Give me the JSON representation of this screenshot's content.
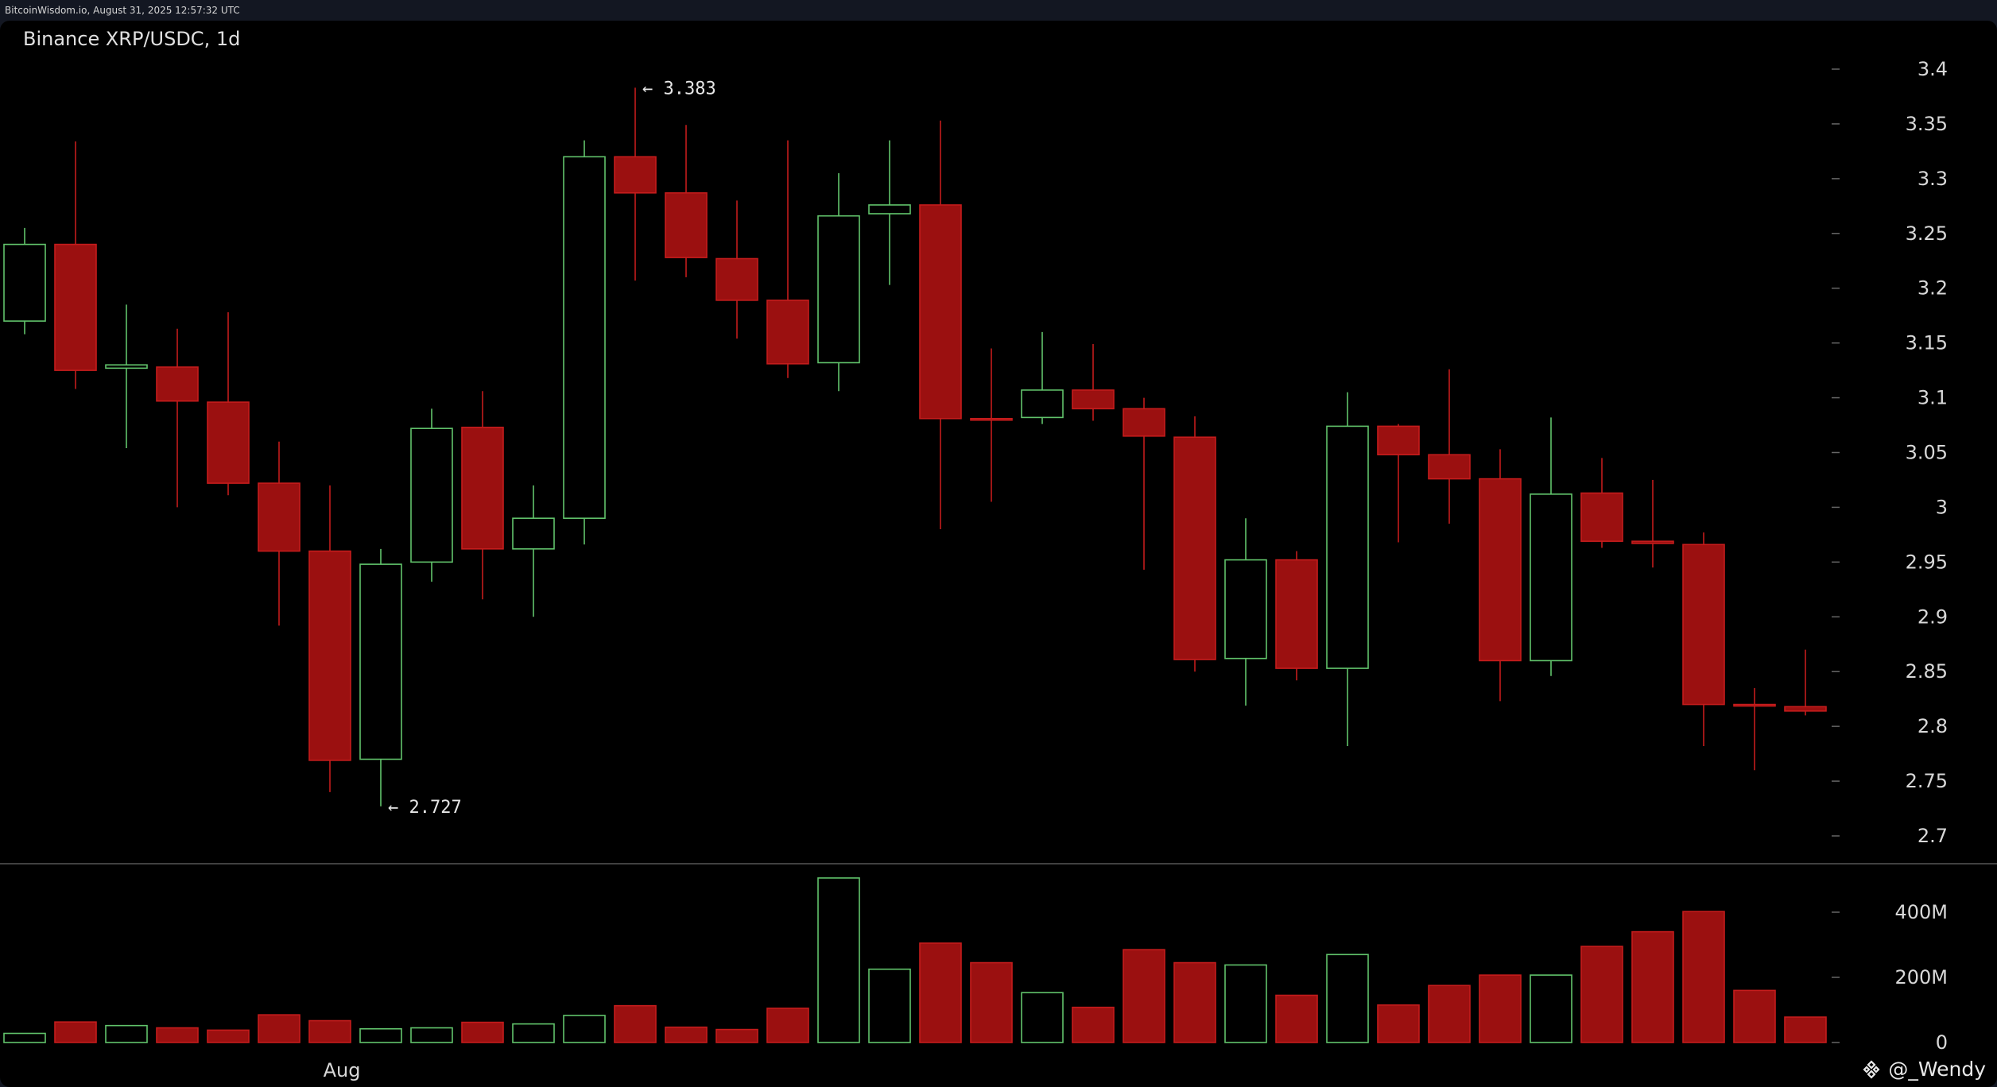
{
  "header": {
    "text": "BitcoinWisdom.io, August 31, 2025 12:57:32 UTC"
  },
  "watermark": {
    "text": "@_Wendy",
    "icon": "binance-logo-icon"
  },
  "colors": {
    "background": "#000000",
    "up": "#2f9e44",
    "up_stroke": "#61c36b",
    "down_fill": "#9b1010",
    "down_stroke": "#c41c1c",
    "axis_text": "#d8d8d8",
    "separator": "#555555"
  },
  "chart_data": {
    "type": "candlestick",
    "title": "Binance XRP/USDC, 1d",
    "price_axis": {
      "ticks": [
        "2.7",
        "2.75",
        "2.8",
        "2.85",
        "2.9",
        "2.95",
        "3",
        "3.05",
        "3.1",
        "3.15",
        "3.2",
        "3.25",
        "3.3",
        "3.35",
        "3.4"
      ]
    },
    "volume_axis": {
      "ticks": [
        "0",
        "200M",
        "400M"
      ],
      "tick_values": [
        0,
        200,
        400
      ],
      "unit": "M"
    },
    "x_axis": {
      "label": "Aug",
      "label_index": 6
    },
    "candles": [
      {
        "o": 3.17,
        "h": 3.255,
        "l": 3.158,
        "c": 3.24,
        "v": 28
      },
      {
        "o": 3.24,
        "h": 3.334,
        "l": 3.108,
        "c": 3.125,
        "v": 63
      },
      {
        "o": 3.127,
        "h": 3.185,
        "l": 3.054,
        "c": 3.13,
        "v": 52
      },
      {
        "o": 3.128,
        "h": 3.163,
        "l": 3.0,
        "c": 3.097,
        "v": 45
      },
      {
        "o": 3.096,
        "h": 3.178,
        "l": 3.011,
        "c": 3.022,
        "v": 38
      },
      {
        "o": 3.022,
        "h": 3.06,
        "l": 2.892,
        "c": 2.96,
        "v": 85
      },
      {
        "o": 2.96,
        "h": 3.02,
        "l": 2.74,
        "c": 2.769,
        "v": 67
      },
      {
        "o": 2.77,
        "h": 2.962,
        "l": 2.727,
        "c": 2.948,
        "v": 42
      },
      {
        "o": 2.95,
        "h": 3.09,
        "l": 2.932,
        "c": 3.072,
        "v": 45
      },
      {
        "o": 3.073,
        "h": 3.106,
        "l": 2.916,
        "c": 2.962,
        "v": 62
      },
      {
        "o": 2.962,
        "h": 3.02,
        "l": 2.9,
        "c": 2.99,
        "v": 57
      },
      {
        "o": 2.99,
        "h": 3.335,
        "l": 2.966,
        "c": 3.32,
        "v": 83
      },
      {
        "o": 3.32,
        "h": 3.383,
        "l": 3.207,
        "c": 3.287,
        "v": 113
      },
      {
        "o": 3.287,
        "h": 3.349,
        "l": 3.21,
        "c": 3.228,
        "v": 47
      },
      {
        "o": 3.227,
        "h": 3.28,
        "l": 3.154,
        "c": 3.189,
        "v": 40
      },
      {
        "o": 3.189,
        "h": 3.335,
        "l": 3.118,
        "c": 3.131,
        "v": 105
      },
      {
        "o": 3.132,
        "h": 3.305,
        "l": 3.106,
        "c": 3.266,
        "v": 505
      },
      {
        "o": 3.268,
        "h": 3.335,
        "l": 3.203,
        "c": 3.276,
        "v": 225
      },
      {
        "o": 3.276,
        "h": 3.353,
        "l": 2.98,
        "c": 3.081,
        "v": 305
      },
      {
        "o": 3.081,
        "h": 3.145,
        "l": 3.005,
        "c": 3.08,
        "v": 245
      },
      {
        "o": 3.082,
        "h": 3.16,
        "l": 3.076,
        "c": 3.107,
        "v": 153
      },
      {
        "o": 3.107,
        "h": 3.149,
        "l": 3.079,
        "c": 3.09,
        "v": 108
      },
      {
        "o": 3.09,
        "h": 3.1,
        "l": 2.943,
        "c": 3.065,
        "v": 285
      },
      {
        "o": 3.064,
        "h": 3.083,
        "l": 2.85,
        "c": 2.861,
        "v": 245
      },
      {
        "o": 2.862,
        "h": 2.99,
        "l": 2.819,
        "c": 2.952,
        "v": 238
      },
      {
        "o": 2.952,
        "h": 2.96,
        "l": 2.842,
        "c": 2.853,
        "v": 145
      },
      {
        "o": 2.853,
        "h": 3.105,
        "l": 2.782,
        "c": 3.074,
        "v": 270
      },
      {
        "o": 3.074,
        "h": 3.076,
        "l": 2.968,
        "c": 3.048,
        "v": 115
      },
      {
        "o": 3.048,
        "h": 3.126,
        "l": 2.985,
        "c": 3.026,
        "v": 175
      },
      {
        "o": 3.026,
        "h": 3.053,
        "l": 2.823,
        "c": 2.86,
        "v": 207
      },
      {
        "o": 2.86,
        "h": 3.082,
        "l": 2.846,
        "c": 3.012,
        "v": 207
      },
      {
        "o": 3.013,
        "h": 3.045,
        "l": 2.963,
        "c": 2.969,
        "v": 295
      },
      {
        "o": 2.969,
        "h": 3.025,
        "l": 2.945,
        "c": 2.967,
        "v": 340
      },
      {
        "o": 2.966,
        "h": 2.977,
        "l": 2.782,
        "c": 2.82,
        "v": 402
      },
      {
        "o": 2.82,
        "h": 2.835,
        "l": 2.76,
        "c": 2.819,
        "v": 160
      },
      {
        "o": 2.818,
        "h": 2.87,
        "l": 2.81,
        "c": 2.814,
        "v": 78
      }
    ],
    "annotations": [
      {
        "index": 12,
        "kind": "high",
        "text": "← 3.383",
        "value": 3.383
      },
      {
        "index": 7,
        "kind": "low",
        "text": "← 2.727",
        "value": 2.727
      }
    ]
  }
}
